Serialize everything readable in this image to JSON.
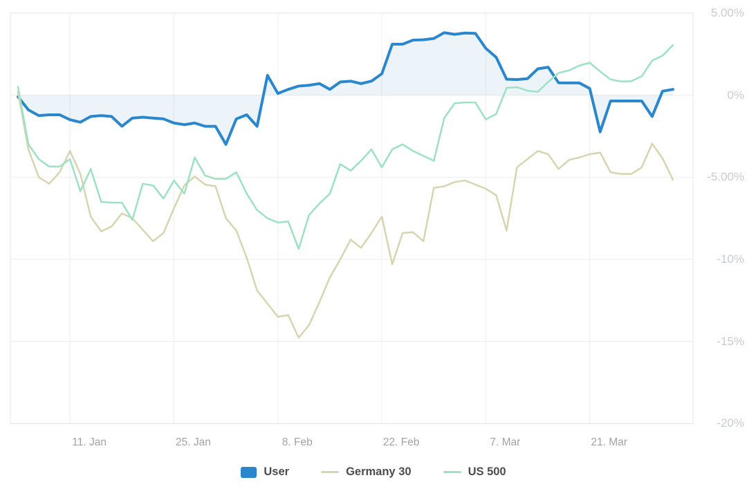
{
  "chart_data": {
    "type": "line",
    "title": "",
    "xlabel": "",
    "ylabel": "",
    "x_tick_labels": [
      "11. Jan",
      "25. Jan",
      "8. Feb",
      "22. Feb",
      "7. Mar",
      "21. Mar"
    ],
    "x_tick_indices": [
      5,
      15,
      25,
      35,
      45,
      55
    ],
    "y_tick_labels": [
      "5.00%",
      "0%",
      "-5.00%",
      "-10%",
      "-15%",
      "-20%"
    ],
    "y_tick_values": [
      5,
      0,
      -5,
      -10,
      -15,
      -20
    ],
    "ylim": [
      -20,
      5
    ],
    "x_index_range": [
      0,
      63
    ],
    "grid": true,
    "legend_position": "bottom",
    "colors": {
      "background": "#ffffff",
      "gridline": "#ededed",
      "plot_border": "#e7e7e7",
      "y_label": "#c9cccf",
      "x_label": "#a2a2a2",
      "legend_text": "#4c4c4c"
    },
    "series": [
      {
        "name": "User",
        "type": "area",
        "color": "#2b87cd",
        "fill": "rgba(43,135,205,0.09)",
        "line_width": 4,
        "values": [
          -0.1,
          -0.9,
          -1.25,
          -1.2,
          -1.2,
          -1.5,
          -1.65,
          -1.3,
          -1.25,
          -1.3,
          -1.9,
          -1.4,
          -1.35,
          -1.4,
          -1.45,
          -1.7,
          -1.8,
          -1.7,
          -1.9,
          -1.9,
          -3.0,
          -1.45,
          -1.2,
          -1.9,
          1.2,
          0.1,
          0.35,
          0.55,
          0.6,
          0.7,
          0.35,
          0.8,
          0.85,
          0.7,
          0.85,
          1.3,
          3.1,
          3.1,
          3.35,
          3.37,
          3.45,
          3.8,
          3.7,
          3.78,
          3.76,
          2.85,
          2.3,
          0.97,
          0.95,
          1.0,
          1.6,
          1.7,
          0.75,
          0.74,
          0.74,
          0.4,
          -2.24,
          -0.36,
          -0.36,
          -0.36,
          -0.36,
          -1.3,
          0.24,
          0.35
        ]
      },
      {
        "name": "Germany 30",
        "type": "line",
        "color": "#d8d4b0",
        "fill": "none",
        "line_width": 2.5,
        "values": [
          0.2,
          -3.3,
          -5.0,
          -5.4,
          -4.7,
          -3.4,
          -4.8,
          -7.4,
          -8.3,
          -8.0,
          -7.2,
          -7.5,
          -8.2,
          -8.9,
          -8.4,
          -6.9,
          -5.5,
          -4.95,
          -5.45,
          -5.55,
          -7.5,
          -8.25,
          -9.9,
          -11.9,
          -12.7,
          -13.5,
          -13.4,
          -14.78,
          -14.0,
          -12.6,
          -11.1,
          -10.0,
          -8.8,
          -9.3,
          -8.4,
          -7.4,
          -10.3,
          -8.4,
          -8.35,
          -8.9,
          -5.65,
          -5.55,
          -5.3,
          -5.2,
          -5.45,
          -5.7,
          -6.1,
          -8.25,
          -4.4,
          -3.9,
          -3.4,
          -3.6,
          -4.5,
          -3.95,
          -3.8,
          -3.6,
          -3.5,
          -4.7,
          -4.8,
          -4.8,
          -4.4,
          -2.95,
          -3.85,
          -5.15
        ]
      },
      {
        "name": "US 500",
        "type": "line",
        "color": "#9be2c3",
        "fill": "none",
        "line_width": 2.5,
        "values": [
          0.5,
          -3.0,
          -3.9,
          -4.35,
          -4.35,
          -3.9,
          -5.85,
          -4.5,
          -6.5,
          -6.55,
          -6.55,
          -7.6,
          -5.4,
          -5.5,
          -6.3,
          -5.2,
          -6.0,
          -3.8,
          -4.9,
          -5.1,
          -5.1,
          -4.7,
          -6.0,
          -7.0,
          -7.5,
          -7.76,
          -7.7,
          -9.37,
          -7.3,
          -6.6,
          -6.0,
          -4.2,
          -4.6,
          -4.0,
          -3.3,
          -4.4,
          -3.3,
          -3.0,
          -3.4,
          -3.7,
          -4.0,
          -1.4,
          -0.5,
          -0.45,
          -0.45,
          -1.48,
          -1.15,
          0.44,
          0.48,
          0.27,
          0.2,
          0.8,
          1.35,
          1.5,
          1.8,
          1.97,
          1.44,
          0.95,
          0.83,
          0.85,
          1.15,
          2.1,
          2.4,
          3.05
        ]
      }
    ]
  }
}
